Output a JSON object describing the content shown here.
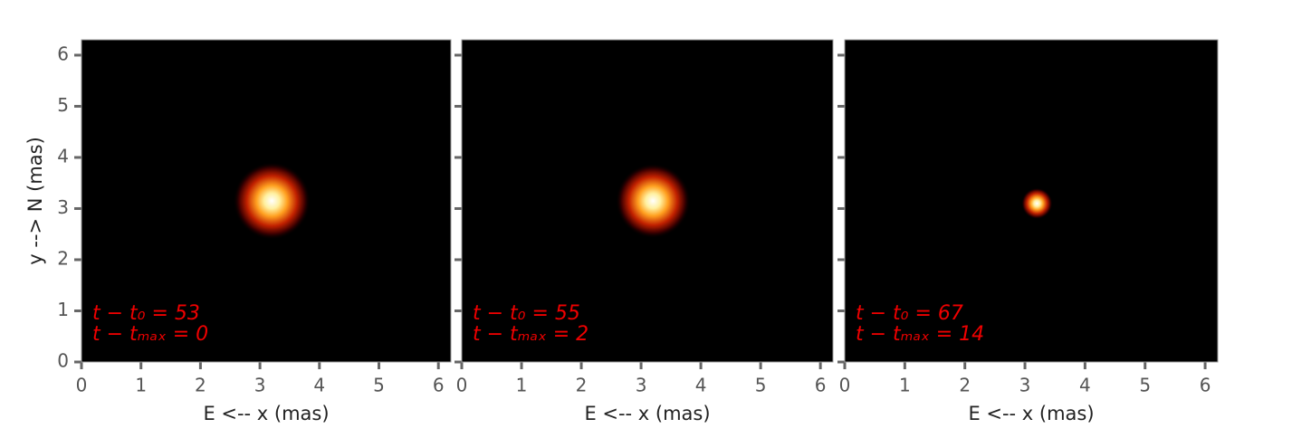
{
  "chart_data": [
    {
      "type": "image",
      "xlabel": "E <-- x (mas)",
      "ylabel": "y --> N (mas)",
      "xlim": [
        0,
        6.21
      ],
      "ylim": [
        0,
        6.3
      ],
      "xticks": [
        0,
        1,
        2,
        3,
        4,
        5,
        6
      ],
      "yticks": [
        0,
        1,
        2,
        3,
        4,
        5,
        6
      ],
      "ytick_labels": true,
      "source": {
        "x": 3.2,
        "y": 3.15,
        "size": 0.5
      },
      "annotations": [
        "t − t₀ = 53",
        "t − tₘₐₓ = 0"
      ]
    },
    {
      "type": "image",
      "xlabel": "E <-- x (mas)",
      "xlim": [
        0,
        6.21
      ],
      "ylim": [
        0,
        6.3
      ],
      "xticks": [
        0,
        1,
        2,
        3,
        4,
        5,
        6
      ],
      "yticks": [
        0,
        1,
        2,
        3,
        4,
        5,
        6
      ],
      "ytick_labels": false,
      "source": {
        "x": 3.2,
        "y": 3.15,
        "size": 0.48
      },
      "annotations": [
        "t − t₀ = 55",
        "t − tₘₐₓ = 2"
      ]
    },
    {
      "type": "image",
      "xlabel": "E <-- x (mas)",
      "xlim": [
        0,
        6.21
      ],
      "ylim": [
        0,
        6.3
      ],
      "xticks": [
        0,
        1,
        2,
        3,
        4,
        5,
        6
      ],
      "yticks": [
        0,
        1,
        2,
        3,
        4,
        5,
        6
      ],
      "ytick_labels": false,
      "source": {
        "x": 3.2,
        "y": 3.1,
        "size": 0.2
      },
      "annotations": [
        "t − t₀ = 67",
        "t − tₘₐₓ = 14"
      ]
    }
  ]
}
